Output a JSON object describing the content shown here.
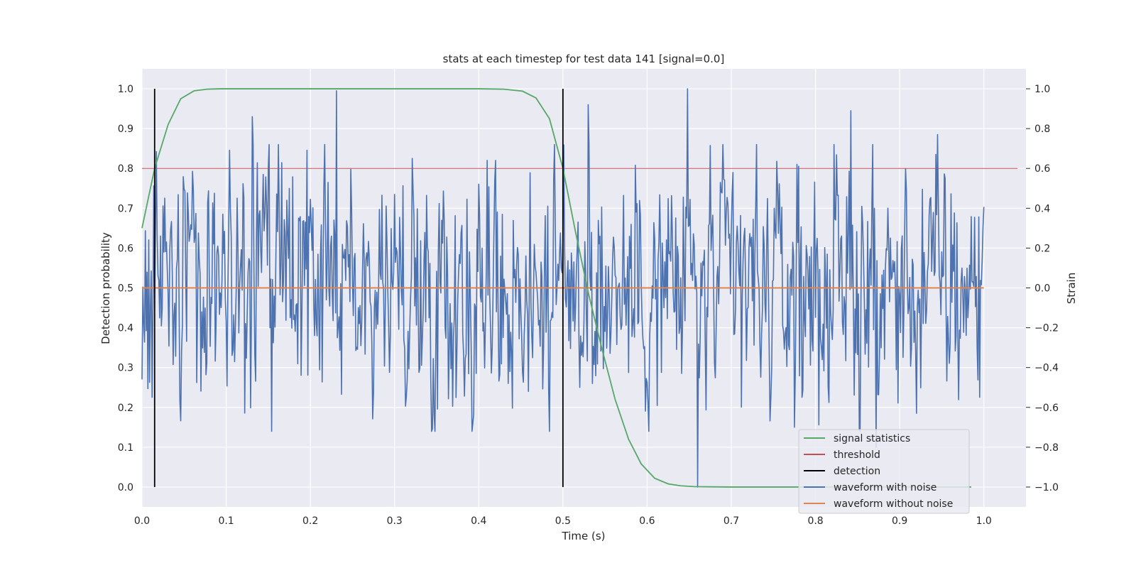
{
  "chart_data": {
    "type": "line",
    "title": "stats at each timestep for test data 141 [signal=0.0]",
    "xlabel": "Time (s)",
    "ylabel": "Detection probability",
    "y2label": "Strain",
    "xlim": [
      0.0,
      1.05
    ],
    "ylim": [
      -0.05,
      1.05
    ],
    "y2lim": [
      -1.1,
      1.1
    ],
    "xticks": [
      "0.0",
      "0.1",
      "0.2",
      "0.3",
      "0.4",
      "0.5",
      "0.6",
      "0.7",
      "0.8",
      "0.9",
      "1.0"
    ],
    "yticks": [
      "0.0",
      "0.1",
      "0.2",
      "0.3",
      "0.4",
      "0.5",
      "0.6",
      "0.7",
      "0.8",
      "0.9",
      "1.0"
    ],
    "y2ticks": [
      "−1.0",
      "−0.8",
      "−0.6",
      "−0.4",
      "−0.2",
      "0.0",
      "0.2",
      "0.4",
      "0.6",
      "0.8",
      "1.0"
    ],
    "grid": true,
    "legend_position": "lower right",
    "colors": {
      "background": "#eaeaf2",
      "grid": "#ffffff",
      "signal_statistics": "#55a868",
      "threshold": "#c44e52",
      "detection": "#000000",
      "waveform_with_noise": "#4c72b0",
      "waveform_without_noise": "#dd8452"
    },
    "series": [
      {
        "name": "signal statistics",
        "axis": "left",
        "x": [
          0.0,
          0.015,
          0.031,
          0.046,
          0.062,
          0.077,
          0.093,
          0.11,
          0.2,
          0.3,
          0.4,
          0.43,
          0.452,
          0.468,
          0.484,
          0.5,
          0.515,
          0.531,
          0.546,
          0.562,
          0.578,
          0.593,
          0.609,
          0.625,
          0.64,
          0.656,
          0.7,
          0.8,
          0.9,
          0.985
        ],
        "y": [
          0.65,
          0.8,
          0.91,
          0.975,
          0.995,
          0.999,
          1.0,
          1.0,
          1.0,
          1.0,
          1.0,
          0.999,
          0.994,
          0.977,
          0.925,
          0.8,
          0.64,
          0.48,
          0.35,
          0.22,
          0.12,
          0.058,
          0.022,
          0.008,
          0.003,
          0.001,
          0.0,
          0.0,
          0.0,
          0.0
        ]
      },
      {
        "name": "threshold",
        "axis": "left",
        "x": [
          0.0,
          1.04
        ],
        "y": [
          0.8,
          0.8
        ]
      },
      {
        "name": "detection",
        "axis": "left",
        "vlines": [
          0.015,
          0.5
        ],
        "ymin": 0.0,
        "ymax": 1.0
      },
      {
        "name": "waveform with noise",
        "axis": "right",
        "x_range": [
          0.0,
          1.0
        ],
        "samples": 1000,
        "value_range": [
          -1.0,
          1.0
        ],
        "peaks": [
          [
            0.131,
            0.86
          ],
          [
            0.231,
            0.99
          ],
          [
            0.53,
            0.92
          ],
          [
            0.648,
            1.0
          ],
          [
            0.66,
            -1.0
          ],
          [
            0.842,
            0.89
          ],
          [
            0.945,
            0.77
          ],
          [
            0.872,
            -0.8
          ]
        ]
      },
      {
        "name": "waveform without noise",
        "axis": "right",
        "x": [
          0.0,
          1.0
        ],
        "y": [
          0.0,
          0.0
        ]
      }
    ]
  }
}
